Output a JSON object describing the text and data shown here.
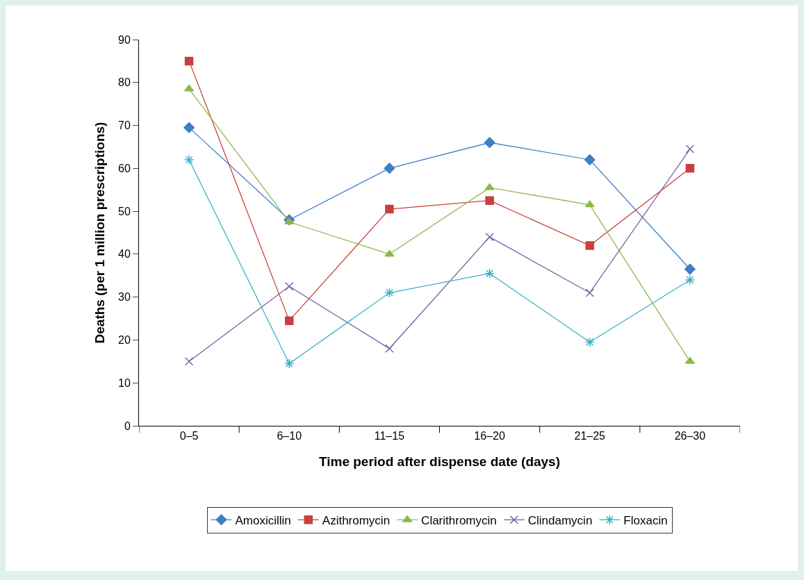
{
  "chart_data": {
    "type": "line",
    "xlabel": "Time period after dispense date (days)",
    "ylabel": "Deaths (per 1 million prescriptions)",
    "categories": [
      "0–5",
      "6–10",
      "11–15",
      "16–20",
      "21–25",
      "26–30"
    ],
    "ylim": [
      0,
      90
    ],
    "yticks": [
      0,
      10,
      20,
      30,
      40,
      50,
      60,
      70,
      80,
      90
    ],
    "legend": "bottom",
    "series": [
      {
        "name": "Amoxicillin",
        "color": "#3f7fc4",
        "marker": "diamond",
        "values": [
          69.5,
          48,
          60,
          66,
          62,
          36.5
        ]
      },
      {
        "name": "Azithromycin",
        "color": "#c8413f",
        "marker": "square",
        "values": [
          85,
          24.5,
          50.5,
          52.5,
          42,
          60
        ]
      },
      {
        "name": "Clarithromycin",
        "color": "#8fb84a",
        "marker": "triangle",
        "values": [
          78.5,
          47.5,
          40,
          55.5,
          51.5,
          15
        ]
      },
      {
        "name": "Clindamycin",
        "color": "#7d5fa5",
        "marker": "cross",
        "values": [
          15,
          32.5,
          18,
          44,
          31,
          64.5
        ]
      },
      {
        "name": "Floxacin",
        "color": "#3cb0c8",
        "marker": "cross",
        "values": [
          62,
          14.5,
          31,
          35.5,
          19.5,
          34
        ]
      }
    ]
  }
}
